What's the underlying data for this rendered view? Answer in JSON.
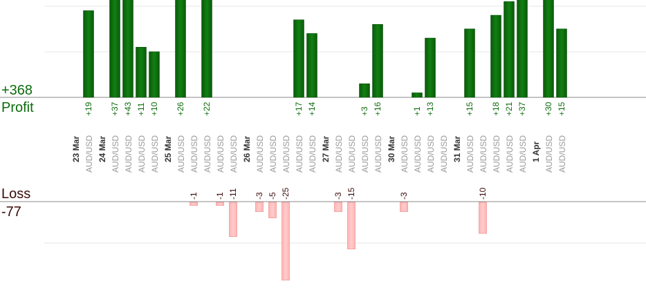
{
  "summary": {
    "profit_total": "+368",
    "profit_label": "Profit",
    "loss_label": "Loss",
    "loss_total": "-77"
  },
  "colors": {
    "profit_bar": "#0b650b",
    "loss_bar": "#ffb6b6",
    "profit_text": "#0b6b0b",
    "loss_text": "#3a0a0a",
    "date_text": "#333333",
    "pair_text": "#999999",
    "axis": "#888888",
    "grid": "#e6e6e6"
  },
  "chart_data": {
    "type": "bar",
    "title": "",
    "xlabel": "",
    "ylabel": "",
    "grid": true,
    "legend": "none",
    "profit_ylim_visible": [
      0,
      37
    ],
    "loss_ylim_visible": [
      0,
      -26
    ],
    "columns": [
      {
        "label": "23 Mar",
        "kind": "date"
      },
      {
        "label": "AUD/USD",
        "kind": "trade",
        "value": 19,
        "text": "+19"
      },
      {
        "label": "24 Mar",
        "kind": "date"
      },
      {
        "label": "AUD/USD",
        "kind": "trade",
        "value": 37,
        "text": "+37"
      },
      {
        "label": "AUD/USD",
        "kind": "trade",
        "value": 43,
        "text": "+43"
      },
      {
        "label": "AUD/USD",
        "kind": "trade",
        "value": 11,
        "text": "+11"
      },
      {
        "label": "AUD/USD",
        "kind": "trade",
        "value": 10,
        "text": "+10"
      },
      {
        "label": "25 Mar",
        "kind": "date"
      },
      {
        "label": "AUD/USD",
        "kind": "trade",
        "value": 26,
        "text": "+26"
      },
      {
        "label": "AUD/USD",
        "kind": "trade",
        "value": -1,
        "text": "-1"
      },
      {
        "label": "AUD/USD",
        "kind": "trade",
        "value": 22,
        "text": "+22"
      },
      {
        "label": "AUD/USD",
        "kind": "trade",
        "value": -1,
        "text": "-1"
      },
      {
        "label": "AUD/USD",
        "kind": "trade",
        "value": -11,
        "text": "-11"
      },
      {
        "label": "26 Mar",
        "kind": "date"
      },
      {
        "label": "AUD/USD",
        "kind": "trade",
        "value": -3,
        "text": "-3"
      },
      {
        "label": "AUD/USD",
        "kind": "trade",
        "value": -5,
        "text": "-5"
      },
      {
        "label": "AUD/USD",
        "kind": "trade",
        "value": -25,
        "text": "-25"
      },
      {
        "label": "AUD/USD",
        "kind": "trade",
        "value": 17,
        "text": "+17"
      },
      {
        "label": "AUD/USD",
        "kind": "trade",
        "value": 14,
        "text": "+14"
      },
      {
        "label": "27 Mar",
        "kind": "date"
      },
      {
        "label": "AUD/USD",
        "kind": "trade",
        "value": -3,
        "text": "-3"
      },
      {
        "label": "AUD/USD",
        "kind": "trade",
        "value": -15,
        "text": "-15"
      },
      {
        "label": "AUD/USD",
        "kind": "trade",
        "value": 3,
        "text": "+3"
      },
      {
        "label": "AUD/USD",
        "kind": "trade",
        "value": 16,
        "text": "+16"
      },
      {
        "label": "30 Mar",
        "kind": "date"
      },
      {
        "label": "AUD/USD",
        "kind": "trade",
        "value": -3,
        "text": "-3"
      },
      {
        "label": "AUD/USD",
        "kind": "trade",
        "value": 1,
        "text": "+1"
      },
      {
        "label": "AUD/USD",
        "kind": "trade",
        "value": 13,
        "text": "+13"
      },
      {
        "label": "AUD/USD",
        "kind": "trade",
        "value": null,
        "text": ""
      },
      {
        "label": "31 Mar",
        "kind": "date"
      },
      {
        "label": "AUD/USD",
        "kind": "trade",
        "value": 15,
        "text": "+15"
      },
      {
        "label": "AUD/USD",
        "kind": "trade",
        "value": -10,
        "text": "-10"
      },
      {
        "label": "AUD/USD",
        "kind": "trade",
        "value": 18,
        "text": "+18"
      },
      {
        "label": "AUD/USD",
        "kind": "trade",
        "value": 21,
        "text": "+21"
      },
      {
        "label": "AUD/USD",
        "kind": "trade",
        "value": 37,
        "text": "+37"
      },
      {
        "label": "1 Apr",
        "kind": "date"
      },
      {
        "label": "AUD/USD",
        "kind": "trade",
        "value": 30,
        "text": "+30"
      },
      {
        "label": "AUD/USD",
        "kind": "trade",
        "value": 15,
        "text": "+15"
      }
    ]
  }
}
